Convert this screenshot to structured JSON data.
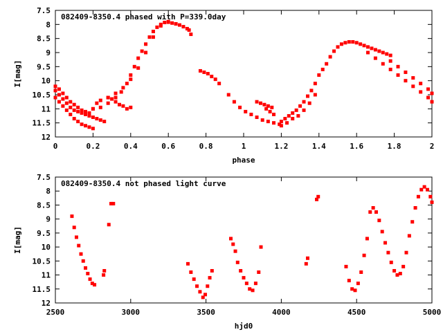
{
  "chart_data": [
    {
      "type": "scatter",
      "title": "082409-8350.4 phased with P=339.0day",
      "xlabel": "phase",
      "ylabel": "I[mag]",
      "xlim": [
        0,
        2
      ],
      "ylim": [
        12,
        7.5
      ],
      "y_inverted": true,
      "grid": false,
      "marker_color": "#ff0000",
      "xticks": [
        "0",
        "0.2",
        "0.4",
        "0.6",
        "0.8",
        "1",
        "1.2",
        "1.4",
        "1.6",
        "1.8",
        "2"
      ],
      "yticks": [
        "7.5",
        "8",
        "8.5",
        "9",
        "9.5",
        "10",
        "10.5",
        "11",
        "11.5",
        "12"
      ],
      "series": [
        {
          "x": [
            0.0,
            0.02,
            0.04,
            0.06,
            0.08,
            0.1,
            0.12,
            0.14,
            0.16,
            0.18,
            0.2,
            0.22,
            0.24,
            0.26,
            0.0,
            0.02,
            0.04,
            0.06,
            0.08,
            0.1,
            0.12,
            0.14,
            0.16,
            0.18,
            0.2,
            0.0,
            0.02,
            0.04,
            0.06,
            0.08,
            0.1,
            0.12,
            0.14,
            0.16,
            0.18,
            0.2,
            0.22,
            0.2,
            0.24,
            0.28,
            0.32,
            0.35,
            0.38,
            0.4,
            0.42,
            0.44,
            0.46,
            0.48,
            0.5,
            0.52,
            0.54,
            0.56,
            0.58,
            0.6,
            0.62,
            0.64,
            0.66,
            0.68,
            0.7,
            0.24,
            0.28,
            0.32,
            0.36,
            0.4,
            0.44,
            0.48,
            0.52,
            0.56,
            0.6,
            0.64,
            0.28,
            0.3,
            0.32,
            0.34,
            0.36,
            0.38,
            0.4,
            0.71,
            0.72,
            0.77,
            0.79,
            0.81,
            0.83,
            0.85,
            0.87,
            0.92,
            0.95,
            0.98,
            1.01,
            1.04,
            1.07,
            1.1,
            1.13,
            1.16,
            1.19,
            1.07,
            1.09,
            1.11,
            1.13,
            1.15,
            1.12,
            1.14,
            1.16,
            1.2,
            1.22,
            1.24,
            1.26,
            1.28,
            1.3,
            1.32,
            1.34,
            1.36,
            1.38,
            1.4,
            1.2,
            1.23,
            1.26,
            1.29,
            1.32,
            1.35,
            1.38,
            1.42,
            1.44,
            1.46,
            1.48,
            1.5,
            1.52,
            1.54,
            1.56,
            1.58,
            1.6,
            1.62,
            1.64,
            1.66,
            1.68,
            1.7,
            1.72,
            1.74,
            1.76,
            1.78,
            1.66,
            1.7,
            1.74,
            1.78,
            1.82,
            1.86,
            1.9,
            1.94,
            1.98,
            2.0,
            1.78,
            1.82,
            1.86,
            1.9,
            1.94,
            1.98,
            2.0
          ],
          "y": [
            10.35,
            10.5,
            10.65,
            10.8,
            10.95,
            11.05,
            11.1,
            11.15,
            11.2,
            11.25,
            11.3,
            11.35,
            11.4,
            11.45,
            10.6,
            10.75,
            10.9,
            11.05,
            11.2,
            11.35,
            11.45,
            11.55,
            11.6,
            11.65,
            11.7,
            10.2,
            10.3,
            10.45,
            10.6,
            10.75,
            10.85,
            10.95,
            11.05,
            11.1,
            11.15,
            11.0,
            10.8,
            11.0,
            10.95,
            10.8,
            10.6,
            10.4,
            10.1,
            9.8,
            9.5,
            9.2,
            8.95,
            8.7,
            8.45,
            8.25,
            8.1,
            8.0,
            7.93,
            7.92,
            7.95,
            7.98,
            8.02,
            8.08,
            8.15,
            10.7,
            10.6,
            10.45,
            10.25,
            9.95,
            9.55,
            9.0,
            8.45,
            8.05,
            7.9,
            7.98,
            10.6,
            10.65,
            10.75,
            10.85,
            10.9,
            11.0,
            10.95,
            8.2,
            8.35,
            9.65,
            9.7,
            9.75,
            9.85,
            9.95,
            10.1,
            10.5,
            10.75,
            10.95,
            11.1,
            11.2,
            11.3,
            11.4,
            11.45,
            11.5,
            11.55,
            10.75,
            10.8,
            10.85,
            10.9,
            10.95,
            11.0,
            11.1,
            11.2,
            11.45,
            11.35,
            11.25,
            11.15,
            11.05,
            10.9,
            10.75,
            10.55,
            10.35,
            10.1,
            9.8,
            11.6,
            11.5,
            11.35,
            11.25,
            11.05,
            10.8,
            10.5,
            9.6,
            9.4,
            9.15,
            8.95,
            8.8,
            8.7,
            8.65,
            8.62,
            8.62,
            8.65,
            8.7,
            8.75,
            8.8,
            8.85,
            8.9,
            8.95,
            9.0,
            9.05,
            9.1,
            9.0,
            9.2,
            9.4,
            9.6,
            9.8,
            10.0,
            10.2,
            10.4,
            10.6,
            10.75,
            9.3,
            9.5,
            9.7,
            9.9,
            10.1,
            10.3,
            10.45
          ]
        }
      ]
    },
    {
      "type": "scatter",
      "title": "082409-8350.4 not phased light curve",
      "xlabel": "hjd0",
      "ylabel": "I[mag]",
      "xlim": [
        2500,
        5000
      ],
      "ylim": [
        12,
        7.5
      ],
      "y_inverted": true,
      "grid": false,
      "marker_color": "#ff0000",
      "xticks": [
        "2500",
        "3000",
        "3500",
        "4000",
        "4500",
        "5000"
      ],
      "yticks": [
        "7.5",
        "8",
        "8.5",
        "9",
        "9.5",
        "10",
        "10.5",
        "11",
        "11.5",
        "12"
      ],
      "series": [
        {
          "x": [
            2610,
            2625,
            2640,
            2655,
            2670,
            2685,
            2700,
            2715,
            2730,
            2745,
            2760,
            2820,
            2825,
            2855,
            2870,
            2885,
            3380,
            3400,
            3420,
            3440,
            3460,
            3480,
            3495,
            3510,
            3525,
            3540,
            3665,
            3680,
            3695,
            3710,
            3730,
            3750,
            3770,
            3790,
            3810,
            3830,
            3850,
            3865,
            4165,
            4175,
            4235,
            4245,
            4430,
            4450,
            4470,
            4490,
            4510,
            4530,
            4550,
            4570,
            4590,
            4610,
            4630,
            4650,
            4670,
            4690,
            4710,
            4730,
            4750,
            4770,
            4790,
            4810,
            4830,
            4850,
            4870,
            4890,
            4910,
            4930,
            4950,
            4970,
            4990,
            5000
          ],
          "y": [
            8.9,
            9.3,
            9.65,
            9.95,
            10.25,
            10.5,
            10.75,
            10.95,
            11.15,
            11.3,
            11.35,
            11.0,
            10.85,
            9.2,
            8.45,
            8.45,
            10.6,
            10.9,
            11.15,
            11.4,
            11.6,
            11.8,
            11.7,
            11.4,
            11.1,
            10.85,
            9.7,
            9.9,
            10.15,
            10.55,
            10.85,
            11.1,
            11.3,
            11.5,
            11.55,
            11.3,
            10.9,
            10.0,
            10.6,
            10.4,
            8.3,
            8.2,
            10.7,
            11.2,
            11.5,
            11.55,
            11.3,
            10.9,
            10.3,
            9.7,
            8.75,
            8.6,
            8.75,
            9.05,
            9.45,
            9.85,
            10.2,
            10.55,
            10.85,
            11.0,
            10.95,
            10.7,
            10.2,
            9.6,
            9.1,
            8.6,
            8.2,
            7.95,
            7.85,
            7.95,
            8.2,
            8.4
          ]
        }
      ]
    }
  ]
}
